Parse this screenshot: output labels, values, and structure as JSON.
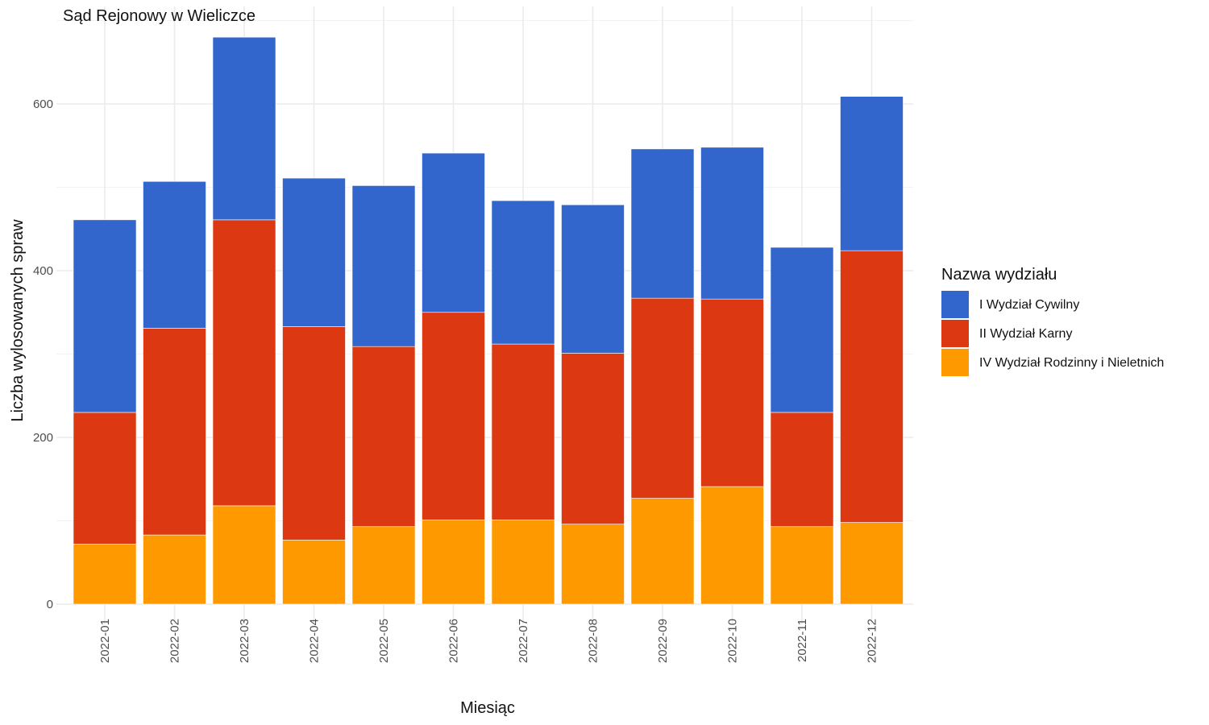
{
  "chart_data": {
    "type": "bar",
    "stacked": true,
    "title": "Sąd Rejonowy w Wieliczce",
    "xlabel": "Miesiąc",
    "ylabel": "Liczba wylosowanych spraw",
    "ylim": [
      0,
      680
    ],
    "yticks": [
      0,
      200,
      400,
      600
    ],
    "grid": true,
    "legend_position": "right",
    "legend_title": "Nazwa wydziału",
    "categories": [
      "2022-01",
      "2022-02",
      "2022-03",
      "2022-04",
      "2022-05",
      "2022-06",
      "2022-07",
      "2022-08",
      "2022-09",
      "2022-10",
      "2022-11",
      "2022-12"
    ],
    "series": [
      {
        "name": "IV Wydział Rodzinny i Nieletnich",
        "color": "#ff9900",
        "values": [
          72,
          83,
          118,
          77,
          93,
          101,
          101,
          96,
          127,
          141,
          93,
          98
        ]
      },
      {
        "name": "II Wydział Karny",
        "color": "#dc3912",
        "values": [
          158,
          248,
          343,
          256,
          216,
          249,
          211,
          205,
          240,
          225,
          137,
          326
        ]
      },
      {
        "name": "I Wydział Cywilny",
        "color": "#3366cc",
        "values": [
          231,
          176,
          219,
          178,
          193,
          191,
          172,
          178,
          179,
          182,
          198,
          185
        ]
      }
    ],
    "legend_order": [
      "I Wydział Cywilny",
      "II Wydział Karny",
      "IV Wydział Rodzinny i Nieletnich"
    ]
  }
}
